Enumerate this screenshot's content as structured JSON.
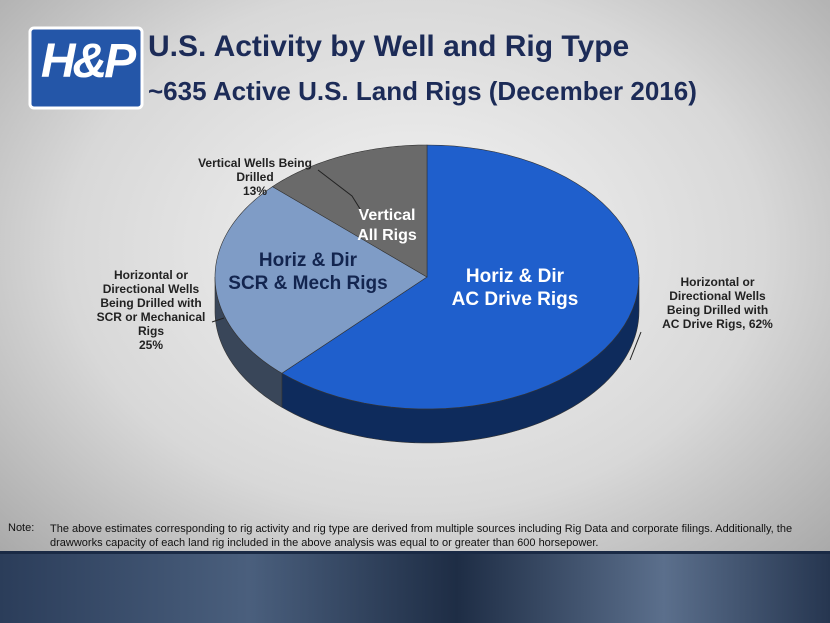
{
  "logo": "H&P",
  "title": "U.S. Activity by Well and Rig Type",
  "subtitle": "~635 Active U.S. Land Rigs (December 2016)",
  "chart_data": {
    "type": "pie",
    "categories": [
      "Horizontal or\nDirectional Wells\nBeing Drilled with\nAC Drive Rigs,",
      "Horizontal or\nDirectional Wells\nBeing Drilled with\nSCR or Mechanical\nRigs",
      "Vertical Wells Being\nDrilled"
    ],
    "values": [
      62,
      25,
      13
    ],
    "value_labels": [
      "62%",
      "25%",
      "13%"
    ],
    "slice_labels": [
      "Horiz & Dir\nAC Drive Rigs",
      "Horiz & Dir\nSCR & Mech Rigs",
      "Vertical\nAll Rigs"
    ],
    "colors": [
      "#1f5fcc",
      "#7f9cc6",
      "#6a6a6a"
    ]
  },
  "note": {
    "label": "Note:",
    "text": "The above estimates corresponding to rig activity and rig type are derived from multiple sources including Rig Data and corporate filings.  Additionally, the drawworks capacity of each land rig included in the above analysis was equal to or greater than 600 horsepower."
  }
}
